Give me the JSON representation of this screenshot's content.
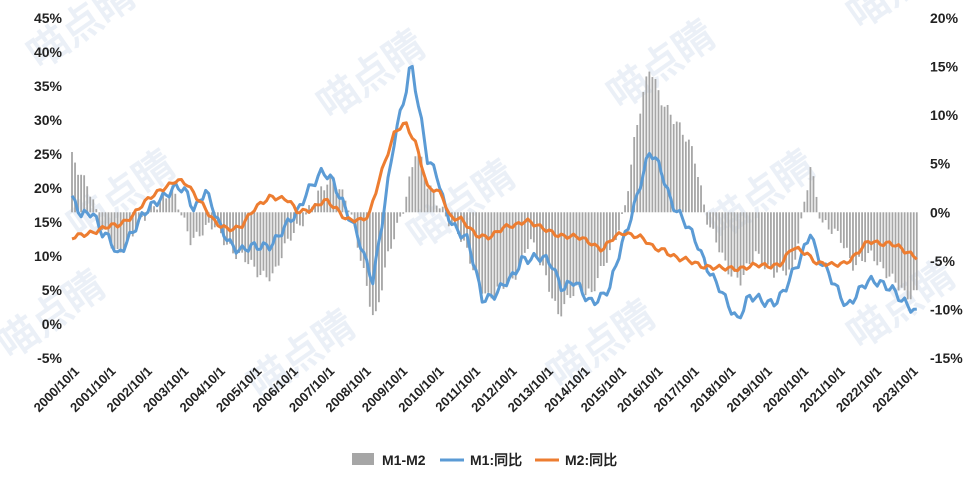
{
  "chart_data": {
    "type": "line",
    "title": "",
    "watermark": "喵点睛",
    "x_start": "2000/10/1",
    "x_end": "2023/12/1",
    "x_tick_labels": [
      "2000/10/1",
      "2001/10/1",
      "2002/10/1",
      "2003/10/1",
      "2004/10/1",
      "2005/10/1",
      "2006/10/1",
      "2007/10/1",
      "2008/10/1",
      "2009/10/1",
      "2010/10/1",
      "2011/10/1",
      "2012/10/1",
      "2013/10/1",
      "2014/10/1",
      "2015/10/1",
      "2016/10/1",
      "2017/10/1",
      "2018/10/1",
      "2019/10/1",
      "2020/10/1",
      "2021/10/1",
      "2022/10/1",
      "2023/10/1"
    ],
    "y_left": {
      "min": -5,
      "max": 45,
      "step": 5,
      "tick_labels": [
        "-5%",
        "0%",
        "5%",
        "10%",
        "15%",
        "20%",
        "25%",
        "30%",
        "35%",
        "40%",
        "45%"
      ]
    },
    "y_right": {
      "min": -15,
      "max": 20,
      "step": 5,
      "tick_labels": [
        "-15%",
        "-10%",
        "-5%",
        "0%",
        "5%",
        "10%",
        "15%",
        "20%"
      ]
    },
    "series": [
      {
        "name": "M1-M2",
        "axis": "right",
        "kind": "bar",
        "color": "#a6a6a6",
        "keypoints": [
          [
            2000.75,
            5.5
          ],
          [
            2001.2,
            3.0
          ],
          [
            2001.5,
            -1.5
          ],
          [
            2002.0,
            -4.0
          ],
          [
            2002.5,
            -2.0
          ],
          [
            2003.0,
            1.0
          ],
          [
            2003.5,
            2.0
          ],
          [
            2004.0,
            -2.5
          ],
          [
            2004.7,
            -1.5
          ],
          [
            2005.3,
            -4.5
          ],
          [
            2005.8,
            -6.0
          ],
          [
            2006.3,
            -6.5
          ],
          [
            2006.8,
            -2.0
          ],
          [
            2007.5,
            1.5
          ],
          [
            2007.9,
            4.0
          ],
          [
            2008.3,
            1.0
          ],
          [
            2008.8,
            -7.0
          ],
          [
            2009.05,
            -11.0
          ],
          [
            2009.4,
            -5.0
          ],
          [
            2009.8,
            0.0
          ],
          [
            2010.2,
            7.0
          ],
          [
            2010.5,
            2.5
          ],
          [
            2010.9,
            0.5
          ],
          [
            2011.3,
            -2.0
          ],
          [
            2011.8,
            -6.0
          ],
          [
            2012.2,
            -9.0
          ],
          [
            2012.8,
            -7.0
          ],
          [
            2013.3,
            -3.0
          ],
          [
            2013.8,
            -7.0
          ],
          [
            2014.1,
            -10.5
          ],
          [
            2014.6,
            -8.0
          ],
          [
            2015.0,
            -8.0
          ],
          [
            2015.5,
            -4.5
          ],
          [
            2015.9,
            0.5
          ],
          [
            2016.2,
            8.0
          ],
          [
            2016.6,
            15.0
          ],
          [
            2016.9,
            12.0
          ],
          [
            2017.3,
            9.0
          ],
          [
            2017.8,
            6.5
          ],
          [
            2018.2,
            -1.5
          ],
          [
            2018.7,
            -5.5
          ],
          [
            2019.1,
            -7.0
          ],
          [
            2019.5,
            -4.5
          ],
          [
            2020.0,
            -6.0
          ],
          [
            2020.5,
            -6.5
          ],
          [
            2021.0,
            5.0
          ],
          [
            2021.3,
            -1.5
          ],
          [
            2021.8,
            -2.0
          ],
          [
            2022.2,
            -6.0
          ],
          [
            2022.7,
            -4.0
          ],
          [
            2023.2,
            -7.0
          ],
          [
            2023.6,
            -8.5
          ],
          [
            2023.9,
            -8.0
          ]
        ]
      },
      {
        "name": "M1:同比",
        "axis": "left",
        "kind": "line",
        "color": "#5b9bd5",
        "keypoints": [
          [
            2000.75,
            18.0
          ],
          [
            2001.0,
            16.0
          ],
          [
            2001.3,
            17.0
          ],
          [
            2001.6,
            13.0
          ],
          [
            2001.8,
            12.0
          ],
          [
            2002.0,
            10.0
          ],
          [
            2002.3,
            13.0
          ],
          [
            2002.6,
            15.0
          ],
          [
            2002.9,
            17.0
          ],
          [
            2003.2,
            19.0
          ],
          [
            2003.6,
            20.0
          ],
          [
            2003.9,
            19.0
          ],
          [
            2004.1,
            17.0
          ],
          [
            2004.4,
            20.0
          ],
          [
            2004.8,
            14.0
          ],
          [
            2005.1,
            12.0
          ],
          [
            2005.4,
            11.0
          ],
          [
            2005.8,
            11.0
          ],
          [
            2006.2,
            12.0
          ],
          [
            2006.6,
            14.0
          ],
          [
            2006.9,
            16.0
          ],
          [
            2007.2,
            20.0
          ],
          [
            2007.6,
            22.0
          ],
          [
            2007.9,
            21.0
          ],
          [
            2008.2,
            18.0
          ],
          [
            2008.5,
            14.0
          ],
          [
            2008.8,
            9.0
          ],
          [
            2009.0,
            6.5
          ],
          [
            2009.3,
            17.0
          ],
          [
            2009.6,
            27.0
          ],
          [
            2009.9,
            34.0
          ],
          [
            2010.05,
            39.0
          ],
          [
            2010.3,
            31.0
          ],
          [
            2010.5,
            24.0
          ],
          [
            2010.8,
            21.0
          ],
          [
            2011.0,
            17.0
          ],
          [
            2011.3,
            14.0
          ],
          [
            2011.6,
            12.0
          ],
          [
            2011.8,
            8.0
          ],
          [
            2012.0,
            4.0
          ],
          [
            2012.4,
            4.5
          ],
          [
            2012.8,
            6.5
          ],
          [
            2013.1,
            10.0
          ],
          [
            2013.5,
            9.5
          ],
          [
            2013.9,
            9.0
          ],
          [
            2014.2,
            5.5
          ],
          [
            2014.5,
            6.0
          ],
          [
            2014.9,
            3.5
          ],
          [
            2015.2,
            4.0
          ],
          [
            2015.5,
            5.0
          ],
          [
            2015.9,
            13.0
          ],
          [
            2016.3,
            20.0
          ],
          [
            2016.6,
            25.0
          ],
          [
            2016.9,
            23.0
          ],
          [
            2017.2,
            18.0
          ],
          [
            2017.5,
            15.0
          ],
          [
            2017.9,
            12.0
          ],
          [
            2018.3,
            7.0
          ],
          [
            2018.7,
            3.0
          ],
          [
            2019.0,
            1.0
          ],
          [
            2019.3,
            4.0
          ],
          [
            2019.7,
            3.0
          ],
          [
            2020.0,
            3.5
          ],
          [
            2020.3,
            5.0
          ],
          [
            2020.7,
            9.0
          ],
          [
            2021.0,
            14.0
          ],
          [
            2021.2,
            10.0
          ],
          [
            2021.6,
            6.0
          ],
          [
            2022.0,
            3.0
          ],
          [
            2022.3,
            4.5
          ],
          [
            2022.6,
            6.0
          ],
          [
            2022.9,
            6.5
          ],
          [
            2023.2,
            5.5
          ],
          [
            2023.5,
            3.0
          ],
          [
            2023.9,
            2.0
          ]
        ]
      },
      {
        "name": "M2:同比",
        "axis": "left",
        "kind": "line",
        "color": "#ed7d31",
        "keypoints": [
          [
            2000.75,
            12.5
          ],
          [
            2001.2,
            13.5
          ],
          [
            2001.6,
            14.0
          ],
          [
            2002.0,
            14.5
          ],
          [
            2002.4,
            16.0
          ],
          [
            2002.8,
            18.0
          ],
          [
            2003.2,
            20.0
          ],
          [
            2003.6,
            21.0
          ],
          [
            2003.9,
            20.5
          ],
          [
            2004.3,
            18.0
          ],
          [
            2004.7,
            14.5
          ],
          [
            2005.0,
            14.0
          ],
          [
            2005.4,
            14.5
          ],
          [
            2005.8,
            17.0
          ],
          [
            2006.2,
            19.0
          ],
          [
            2006.7,
            18.0
          ],
          [
            2006.9,
            16.5
          ],
          [
            2007.3,
            17.0
          ],
          [
            2007.7,
            18.0
          ],
          [
            2008.0,
            17.0
          ],
          [
            2008.3,
            15.5
          ],
          [
            2008.7,
            15.0
          ],
          [
            2008.9,
            16.0
          ],
          [
            2009.2,
            22.0
          ],
          [
            2009.6,
            28.0
          ],
          [
            2009.9,
            29.5
          ],
          [
            2010.2,
            26.5
          ],
          [
            2010.5,
            20.0
          ],
          [
            2010.9,
            19.0
          ],
          [
            2011.1,
            16.0
          ],
          [
            2011.4,
            15.5
          ],
          [
            2011.8,
            13.0
          ],
          [
            2012.2,
            13.0
          ],
          [
            2012.6,
            14.0
          ],
          [
            2012.9,
            14.5
          ],
          [
            2013.2,
            15.5
          ],
          [
            2013.6,
            14.0
          ],
          [
            2013.9,
            13.5
          ],
          [
            2014.3,
            13.0
          ],
          [
            2014.7,
            12.5
          ],
          [
            2015.0,
            12.0
          ],
          [
            2015.3,
            11.0
          ],
          [
            2015.6,
            12.5
          ],
          [
            2015.9,
            13.5
          ],
          [
            2016.3,
            13.0
          ],
          [
            2016.7,
            11.0
          ],
          [
            2017.0,
            11.0
          ],
          [
            2017.4,
            9.5
          ],
          [
            2017.8,
            9.0
          ],
          [
            2018.2,
            8.5
          ],
          [
            2018.6,
            8.0
          ],
          [
            2019.0,
            8.3
          ],
          [
            2019.4,
            8.5
          ],
          [
            2019.8,
            8.5
          ],
          [
            2020.2,
            9.0
          ],
          [
            2020.5,
            11.0
          ],
          [
            2020.9,
            10.5
          ],
          [
            2021.2,
            9.0
          ],
          [
            2021.6,
            8.5
          ],
          [
            2021.9,
            9.0
          ],
          [
            2022.2,
            10.0
          ],
          [
            2022.6,
            12.0
          ],
          [
            2022.9,
            12.0
          ],
          [
            2023.2,
            12.0
          ],
          [
            2023.6,
            10.5
          ],
          [
            2023.9,
            10.0
          ]
        ]
      }
    ]
  },
  "legend": {
    "items": [
      {
        "label": "M1-M2",
        "color": "#a6a6a6"
      },
      {
        "label": "M1:同比",
        "color": "#5b9bd5"
      },
      {
        "label": "M2:同比",
        "color": "#ed7d31"
      }
    ]
  }
}
